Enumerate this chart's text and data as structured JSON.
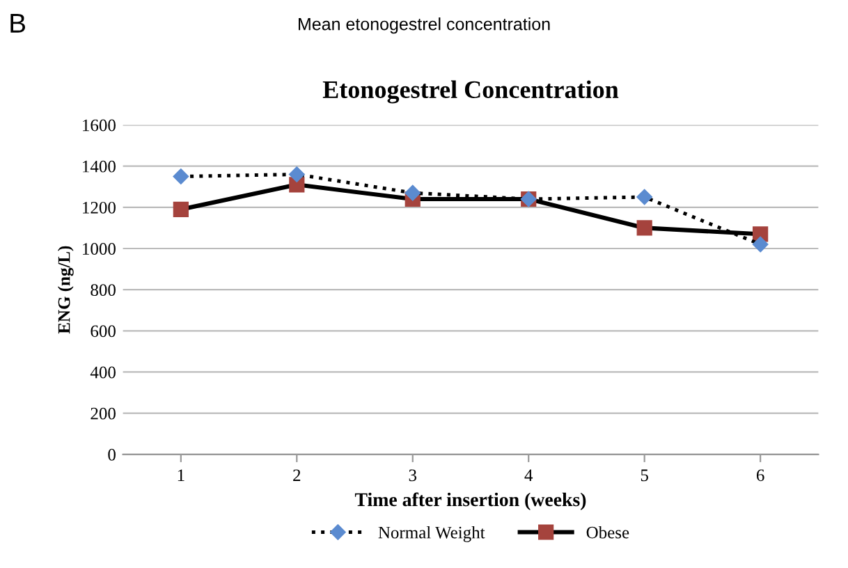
{
  "chart_data": {
    "type": "line",
    "title": "Etonogestrel Concentration",
    "subtitle": "Mean etonogestrel concentration",
    "annotations": [
      "B"
    ],
    "xlabel": "Time after insertion (weeks)",
    "ylabel": "ENG (ng/L)",
    "categories": [
      "1",
      "2",
      "3",
      "4",
      "5",
      "6"
    ],
    "series": [
      {
        "name": "Normal Weight",
        "color": "#5b8bd0",
        "values": [
          1350,
          1360,
          1270,
          1240,
          1250,
          1020
        ],
        "marker": "diamond",
        "line_style": "dotted"
      },
      {
        "name": "Obese",
        "color": "#a5433d",
        "values": [
          1190,
          1310,
          1240,
          1240,
          1100,
          1070
        ],
        "marker": "square",
        "line_style": "solid"
      }
    ],
    "ylim": [
      0,
      1600
    ],
    "yticks": [
      0,
      200,
      400,
      600,
      800,
      1000,
      1200,
      1400,
      1600
    ],
    "grid": "y",
    "legend": "bottom"
  }
}
